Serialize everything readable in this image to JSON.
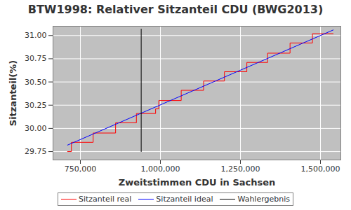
{
  "chart_data": {
    "type": "line",
    "title": "BTW1998: Relativer Sitzanteil CDU (BWG2013)",
    "x_label": "Zweitstimmen CDU in Sachsen",
    "y_label": "Sitzanteil(%)",
    "xlim": [
      664500,
      1563600
    ],
    "ylim": [
      29.66,
      31.1
    ],
    "xticks": [
      {
        "value": 750000,
        "label": "750,000"
      },
      {
        "value": 1000000,
        "label": "1,000,000"
      },
      {
        "value": 1250000,
        "label": "1,250,000"
      },
      {
        "value": 1500000,
        "label": "1,500,000"
      }
    ],
    "yticks": [
      29.75,
      {
        "value": 30.0,
        "label": "30.00"
      },
      30.25,
      {
        "value": 30.5,
        "label": "30.50"
      },
      30.75,
      {
        "value": 31.0,
        "label": "31.00"
      }
    ],
    "grid": true,
    "legend": "bottom",
    "series": [
      {
        "name": "Sitzanteil real",
        "color": "#ff0000",
        "line_style": "step",
        "x": [
          710000,
          722000,
          790000,
          860000,
          925000,
          985000,
          995000,
          1065000,
          1135000,
          1200000,
          1270000,
          1335000,
          1405000,
          1475000,
          1540000
        ],
        "values": [
          29.75,
          29.85,
          29.95,
          30.06,
          30.16,
          30.21,
          30.3,
          30.41,
          30.51,
          30.61,
          30.71,
          30.81,
          30.92,
          31.02,
          31.02
        ]
      },
      {
        "name": "Sitzanteil ideal",
        "color": "#0000ff",
        "line_style": "solid",
        "x": [
          710000,
          1540000
        ],
        "values": [
          29.82,
          31.06
        ]
      },
      {
        "name": "Wahlergebnis",
        "color": "#000000",
        "line_style": "solid",
        "x": [
          940000,
          940000
        ],
        "values": [
          29.75,
          31.07
        ]
      }
    ]
  }
}
